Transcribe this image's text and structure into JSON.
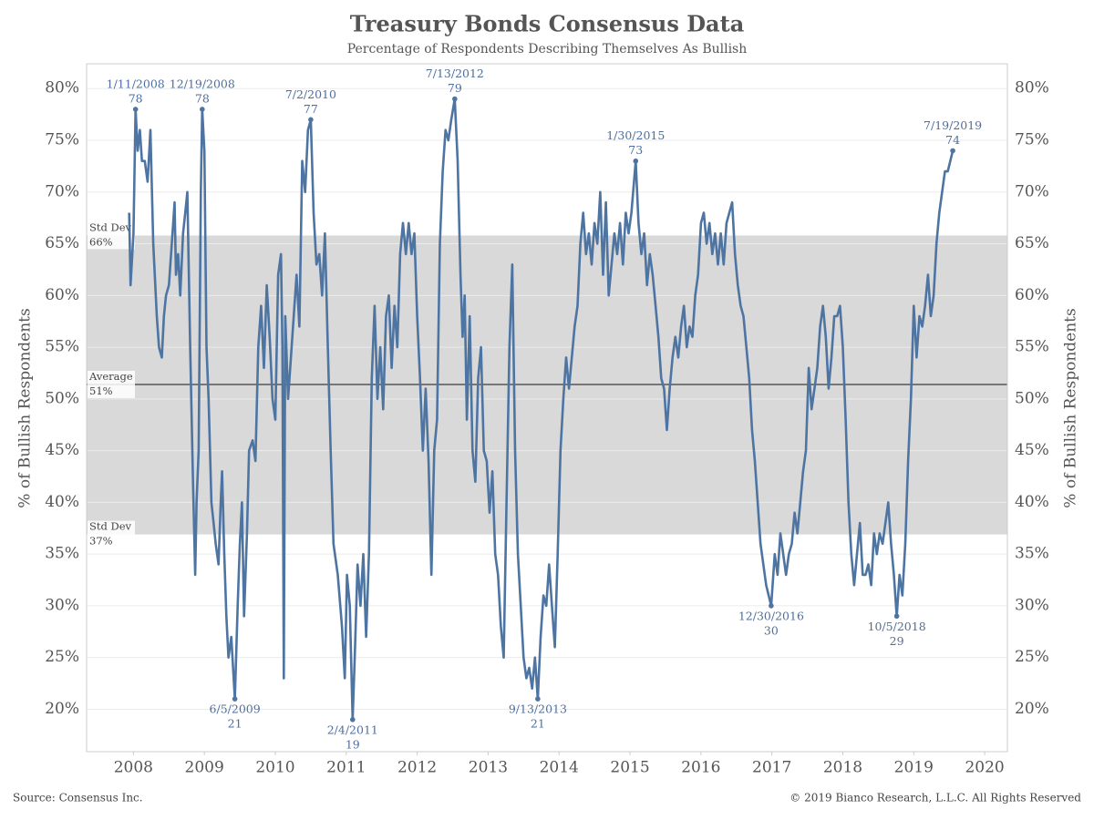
{
  "chart_data": {
    "type": "line",
    "title": "Treasury Bonds Consensus Data",
    "subtitle": "Percentage of Respondents Describing Themselves As Bullish",
    "ylabel": "% of Bullish Respondents",
    "source": "Source: Consensus Inc.",
    "copyright": "© 2019 Bianco Research, L.L.C. All Rights Reserved",
    "xlim": [
      2007.34,
      2020.32
    ],
    "xticks": [
      2008,
      2009,
      2010,
      2011,
      2012,
      2013,
      2014,
      2015,
      2016,
      2017,
      2018,
      2019,
      2020
    ],
    "ylim": [
      15.9,
      82.4
    ],
    "yticks": [
      {
        "value": 20,
        "label": "20%"
      },
      {
        "value": 25,
        "label": "25%"
      },
      {
        "value": 30,
        "label": "30%"
      },
      {
        "value": 35,
        "label": "35%"
      },
      {
        "value": 40,
        "label": "40%"
      },
      {
        "value": 45,
        "label": "45%"
      },
      {
        "value": 50,
        "label": "50%"
      },
      {
        "value": 55,
        "label": "55%"
      },
      {
        "value": 60,
        "label": "60%"
      },
      {
        "value": 65,
        "label": "65%"
      },
      {
        "value": 70,
        "label": "70%"
      },
      {
        "value": 75,
        "label": "75%"
      },
      {
        "value": 80,
        "label": "80%"
      }
    ],
    "grid": true,
    "bands": [
      {
        "name": "Std Dev",
        "value": 65.8,
        "label": "66%"
      },
      {
        "name": "Average",
        "value": 51.4,
        "label": "51%"
      },
      {
        "name": "Std Dev",
        "value": 36.9,
        "label": "37%"
      }
    ],
    "series": [
      {
        "color": "#4e74a2",
        "x": [
          2007.94,
          2007.96,
          2008.0,
          2008.03,
          2008.06,
          2008.09,
          2008.12,
          2008.16,
          2008.2,
          2008.24,
          2008.28,
          2008.33,
          2008.36,
          2008.4,
          2008.43,
          2008.46,
          2008.5,
          2008.55,
          2008.58,
          2008.6,
          2008.63,
          2008.66,
          2008.7,
          2008.73,
          2008.76,
          2008.8,
          2008.84,
          2008.87,
          2008.89,
          2008.92,
          2008.95,
          2008.97,
          2009.0,
          2009.03,
          2009.06,
          2009.1,
          2009.13,
          2009.16,
          2009.2,
          2009.23,
          2009.25,
          2009.28,
          2009.31,
          2009.34,
          2009.38,
          2009.43,
          2009.47,
          2009.5,
          2009.53,
          2009.56,
          2009.6,
          2009.63,
          2009.68,
          2009.72,
          2009.76,
          2009.8,
          2009.84,
          2009.88,
          2009.92,
          2009.96,
          2010.0,
          2010.04,
          2010.08,
          2010.1,
          2010.12,
          2010.14,
          2010.18,
          2010.22,
          2010.26,
          2010.3,
          2010.34,
          2010.38,
          2010.42,
          2010.46,
          2010.5,
          2010.54,
          2010.58,
          2010.62,
          2010.66,
          2010.7,
          2010.74,
          2010.78,
          2010.82,
          2010.88,
          2010.94,
          2010.98,
          2011.01,
          2011.05,
          2011.09,
          2011.12,
          2011.16,
          2011.2,
          2011.24,
          2011.28,
          2011.32,
          2011.36,
          2011.4,
          2011.44,
          2011.48,
          2011.52,
          2011.56,
          2011.6,
          2011.64,
          2011.68,
          2011.72,
          2011.76,
          2011.8,
          2011.84,
          2011.88,
          2011.92,
          2011.96,
          2012.0,
          2012.04,
          2012.08,
          2012.12,
          2012.16,
          2012.2,
          2012.24,
          2012.28,
          2012.32,
          2012.36,
          2012.4,
          2012.44,
          2012.48,
          2012.53,
          2012.57,
          2012.61,
          2012.64,
          2012.67,
          2012.7,
          2012.74,
          2012.78,
          2012.82,
          2012.86,
          2012.9,
          2012.94,
          2012.98,
          2013.02,
          2013.06,
          2013.1,
          2013.14,
          2013.18,
          2013.22,
          2013.26,
          2013.3,
          2013.34,
          2013.38,
          2013.42,
          2013.46,
          2013.5,
          2013.54,
          2013.58,
          2013.62,
          2013.66,
          2013.7,
          2013.74,
          2013.78,
          2013.82,
          2013.86,
          2013.9,
          2013.94,
          2013.98,
          2014.02,
          2014.06,
          2014.1,
          2014.14,
          2014.18,
          2014.22,
          2014.26,
          2014.3,
          2014.34,
          2014.38,
          2014.42,
          2014.46,
          2014.5,
          2014.54,
          2014.58,
          2014.62,
          2014.66,
          2014.7,
          2014.74,
          2014.78,
          2014.82,
          2014.86,
          2014.9,
          2014.94,
          2014.98,
          2015.02,
          2015.08,
          2015.12,
          2015.16,
          2015.2,
          2015.24,
          2015.28,
          2015.32,
          2015.36,
          2015.4,
          2015.44,
          2015.48,
          2015.52,
          2015.56,
          2015.6,
          2015.64,
          2015.68,
          2015.72,
          2015.76,
          2015.8,
          2015.84,
          2015.88,
          2015.92,
          2015.96,
          2016.0,
          2016.04,
          2016.08,
          2016.12,
          2016.16,
          2016.2,
          2016.24,
          2016.28,
          2016.32,
          2016.36,
          2016.4,
          2016.44,
          2016.48,
          2016.52,
          2016.56,
          2016.6,
          2016.64,
          2016.68,
          2016.72,
          2016.76,
          2016.8,
          2016.84,
          2016.88,
          2016.92,
          2016.99,
          2017.04,
          2017.08,
          2017.12,
          2017.16,
          2017.2,
          2017.24,
          2017.28,
          2017.32,
          2017.36,
          2017.4,
          2017.44,
          2017.48,
          2017.52,
          2017.56,
          2017.6,
          2017.64,
          2017.68,
          2017.72,
          2017.76,
          2017.8,
          2017.84,
          2017.88,
          2017.92,
          2017.96,
          2018.0,
          2018.04,
          2018.08,
          2018.12,
          2018.16,
          2018.2,
          2018.24,
          2018.28,
          2018.32,
          2018.36,
          2018.4,
          2018.44,
          2018.48,
          2018.52,
          2018.56,
          2018.6,
          2018.64,
          2018.68,
          2018.72,
          2018.76,
          2018.8,
          2018.84,
          2018.88,
          2018.92,
          2018.96,
          2019.0,
          2019.04,
          2019.08,
          2019.12,
          2019.16,
          2019.2,
          2019.24,
          2019.28,
          2019.32,
          2019.36,
          2019.4,
          2019.44,
          2019.48,
          2019.55
        ],
        "values": [
          68,
          61,
          66,
          78,
          74,
          76,
          73,
          73,
          71,
          76,
          65,
          58,
          55,
          54,
          58,
          60,
          61,
          66,
          69,
          62,
          64,
          60,
          66,
          68,
          70,
          55,
          42,
          33,
          40,
          45,
          70,
          78,
          74,
          55,
          50,
          40,
          38,
          36,
          34,
          40,
          43,
          35,
          29,
          25,
          27,
          21,
          30,
          36,
          40,
          29,
          37,
          45,
          46,
          44,
          55,
          59,
          53,
          61,
          56,
          50,
          48,
          62,
          64,
          55,
          23,
          58,
          50,
          54,
          58,
          62,
          57,
          73,
          70,
          76,
          77,
          68,
          63,
          64,
          60,
          66,
          55,
          45,
          36,
          33,
          28,
          23,
          33,
          30,
          19,
          25,
          34,
          30,
          35,
          27,
          35,
          52,
          59,
          50,
          55,
          49,
          58,
          60,
          53,
          59,
          55,
          64,
          67,
          64,
          67,
          64,
          66,
          58,
          52,
          45,
          51,
          44,
          33,
          45,
          48,
          65,
          72,
          76,
          75,
          77,
          79,
          73,
          62,
          56,
          60,
          48,
          58,
          45,
          42,
          52,
          55,
          45,
          44,
          39,
          43,
          35,
          33,
          28,
          25,
          40,
          55,
          63,
          45,
          35,
          30,
          25,
          23,
          24,
          22,
          25,
          21,
          27,
          31,
          30,
          34,
          30,
          26,
          35,
          45,
          50,
          54,
          51,
          54,
          57,
          59,
          65,
          68,
          64,
          66,
          63,
          67,
          65,
          70,
          62,
          69,
          60,
          63,
          66,
          64,
          67,
          63,
          68,
          66,
          68,
          73,
          67,
          64,
          66,
          61,
          64,
          62,
          59,
          56,
          52,
          51,
          47,
          51,
          54,
          56,
          54,
          57,
          59,
          55,
          57,
          56,
          60,
          62,
          67,
          68,
          65,
          67,
          64,
          66,
          63,
          66,
          63,
          67,
          68,
          69,
          64,
          61,
          59,
          58,
          55,
          52,
          47,
          44,
          40,
          36,
          34,
          32,
          30,
          35,
          33,
          37,
          35,
          33,
          35,
          36,
          39,
          37,
          40,
          43,
          45,
          53,
          49,
          51,
          53,
          57,
          59,
          56,
          51,
          54,
          58,
          58,
          59,
          55,
          48,
          40,
          35,
          32,
          35,
          38,
          33,
          33,
          34,
          32,
          37,
          35,
          37,
          36,
          38,
          40,
          36,
          33,
          29,
          33,
          31,
          36,
          44,
          50,
          59,
          54,
          58,
          57,
          59,
          62,
          58,
          60,
          65,
          68,
          70,
          72,
          72,
          74
        ]
      }
    ],
    "annotations": [
      {
        "x": 2008.03,
        "y": 78,
        "date": "1/11/2008"
      },
      {
        "x": 2008.97,
        "y": 78,
        "date": "12/19/2008"
      },
      {
        "x": 2009.43,
        "y": 21,
        "date": "6/5/2009"
      },
      {
        "x": 2010.5,
        "y": 77,
        "date": "7/2/2010"
      },
      {
        "x": 2011.09,
        "y": 19,
        "date": "2/4/2011"
      },
      {
        "x": 2012.53,
        "y": 79,
        "date": "7/13/2012"
      },
      {
        "x": 2013.7,
        "y": 21,
        "date": "9/13/2013"
      },
      {
        "x": 2015.08,
        "y": 73,
        "date": "1/30/2015"
      },
      {
        "x": 2016.99,
        "y": 30,
        "date": "12/30/2016"
      },
      {
        "x": 2018.76,
        "y": 29,
        "date": "10/5/2018"
      },
      {
        "x": 2019.55,
        "y": 74,
        "date": "7/19/2019"
      }
    ]
  }
}
